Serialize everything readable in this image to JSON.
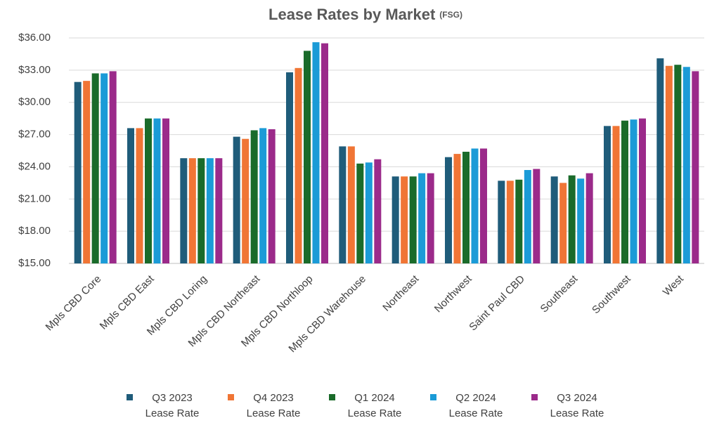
{
  "chart_data": {
    "type": "bar",
    "title": "Lease Rates by Market",
    "title_note": "(FSG)",
    "categories": [
      "Mpls CBD Core",
      "Mpls CBD East",
      "Mpls CBD Loring",
      "Mpls CBD Northeast",
      "Mpls CBD Northloop",
      "Mpls CBD Warehouse",
      "Northeast",
      "Northwest",
      "Saint Paul CBD",
      "Southeast",
      "Southwest",
      "West"
    ],
    "series": [
      {
        "name": "Q3 2023 Lease Rate",
        "color": "#1f5c7a",
        "values": [
          31.9,
          27.6,
          24.8,
          26.8,
          32.8,
          25.9,
          23.1,
          24.9,
          22.7,
          23.1,
          27.8,
          34.1
        ]
      },
      {
        "name": "Q4 2023 Lease Rate",
        "color": "#f07535",
        "values": [
          32.0,
          27.6,
          24.8,
          26.6,
          33.2,
          25.9,
          23.1,
          25.2,
          22.7,
          22.5,
          27.8,
          33.4
        ]
      },
      {
        "name": "Q1 2024 Lease Rate",
        "color": "#1a6b2a",
        "values": [
          32.7,
          28.5,
          24.8,
          27.4,
          34.8,
          24.3,
          23.1,
          25.4,
          22.8,
          23.2,
          28.3,
          33.5
        ]
      },
      {
        "name": "Q2 2024 Lease Rate",
        "color": "#1b9bd7",
        "values": [
          32.7,
          28.5,
          24.8,
          27.6,
          35.6,
          24.4,
          23.4,
          25.7,
          23.7,
          22.9,
          28.4,
          33.3
        ]
      },
      {
        "name": "Q3 2024 Lease Rate",
        "color": "#9b2a8a",
        "values": [
          32.9,
          28.5,
          24.8,
          27.5,
          35.5,
          24.7,
          23.4,
          25.7,
          23.8,
          23.4,
          28.5,
          32.9
        ]
      }
    ],
    "ylim": [
      15,
      36
    ],
    "yticks": [
      {
        "value": 15,
        "label": "$15.00"
      },
      {
        "value": 18,
        "label": "$18.00"
      },
      {
        "value": 21,
        "label": "$21.00"
      },
      {
        "value": 24,
        "label": "$24.00"
      },
      {
        "value": 27,
        "label": "$27.00"
      },
      {
        "value": 30,
        "label": "$30.00"
      },
      {
        "value": 33,
        "label": "$33.00"
      },
      {
        "value": 36,
        "label": "$36.00"
      }
    ],
    "grid": true
  }
}
